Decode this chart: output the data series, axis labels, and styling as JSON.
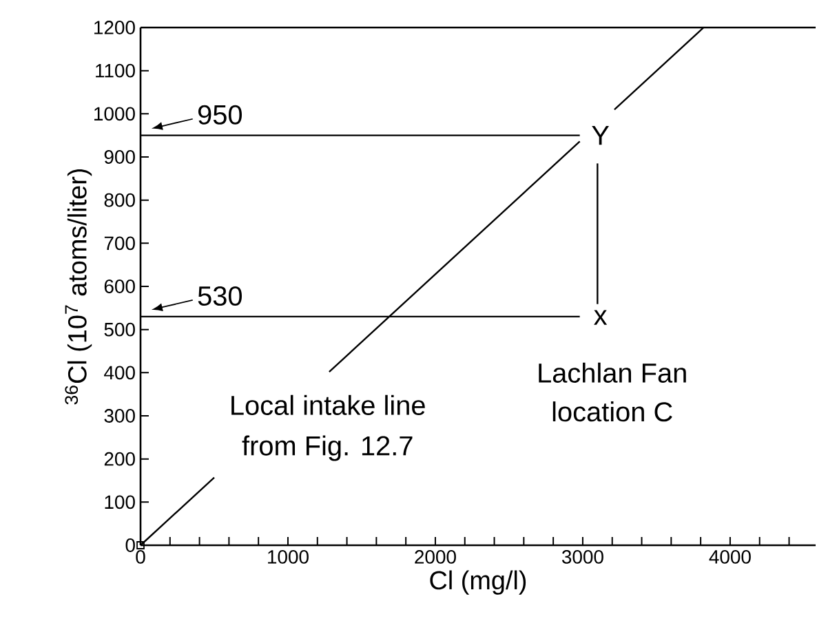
{
  "chart_data": {
    "type": "line",
    "xlabel": "Cl  (mg/l)",
    "ylabel": "$^{36}$Cl  (10$^{7}$ atoms/liter)",
    "xlim": [
      0,
      4580
    ],
    "ylim": [
      0,
      1200
    ],
    "xticks": [
      0,
      {
        "value": 200,
        "label": null
      },
      {
        "value": 400,
        "label": null
      },
      {
        "value": 600,
        "label": null
      },
      {
        "value": 800,
        "label": null
      },
      1000,
      {
        "value": 1200,
        "label": null
      },
      {
        "value": 1400,
        "label": null
      },
      {
        "value": 1600,
        "label": null
      },
      {
        "value": 1800,
        "label": null
      },
      2000,
      {
        "value": 2200,
        "label": null
      },
      {
        "value": 2400,
        "label": null
      },
      {
        "value": 2600,
        "label": null
      },
      {
        "value": 2800,
        "label": null
      },
      3000,
      {
        "value": 3200,
        "label": null
      },
      {
        "value": 3400,
        "label": null
      },
      {
        "value": 3600,
        "label": null
      },
      {
        "value": 3800,
        "label": null
      },
      4000,
      {
        "value": 4200,
        "label": null
      },
      {
        "value": 4400,
        "label": null
      }
    ],
    "yticks": [
      0,
      100,
      200,
      300,
      400,
      500,
      600,
      700,
      800,
      900,
      1000,
      1100,
      1200
    ],
    "grid": false,
    "legend": false,
    "series": [
      {
        "type": "line",
        "color": "#000000",
        "marker": "none",
        "x": [
          0,
          500,
          900,
          1280,
          2980,
          3100,
          3215,
          3820
        ],
        "values": [
          0,
          157,
          null,
          402,
          936,
          null,
          1010,
          1200
        ]
      },
      {
        "type": "line",
        "color": "#000000",
        "marker": "none",
        "x": [
          0,
          2980
        ],
        "values": [
          950,
          950
        ]
      },
      {
        "type": "line",
        "color": "#000000",
        "marker": "none",
        "x": [
          0,
          2980
        ],
        "values": [
          530,
          530
        ]
      },
      {
        "type": "line",
        "color": "#000000",
        "marker": "none",
        "x": [
          3100,
          3100
        ],
        "values": [
          885,
          559
        ]
      },
      {
        "type": "scatter",
        "color": "#000000",
        "marker": "square",
        "x": [
          0
        ],
        "values": [
          0
        ]
      }
    ],
    "annotations": [
      {
        "text": "950",
        "x": 0,
        "y": 950
      },
      {
        "text": "530",
        "x": 0,
        "y": 530
      },
      "Y",
      "x",
      "Local intake line",
      "from Fig. 12.7",
      "Lachlan Fan",
      "location C"
    ]
  }
}
